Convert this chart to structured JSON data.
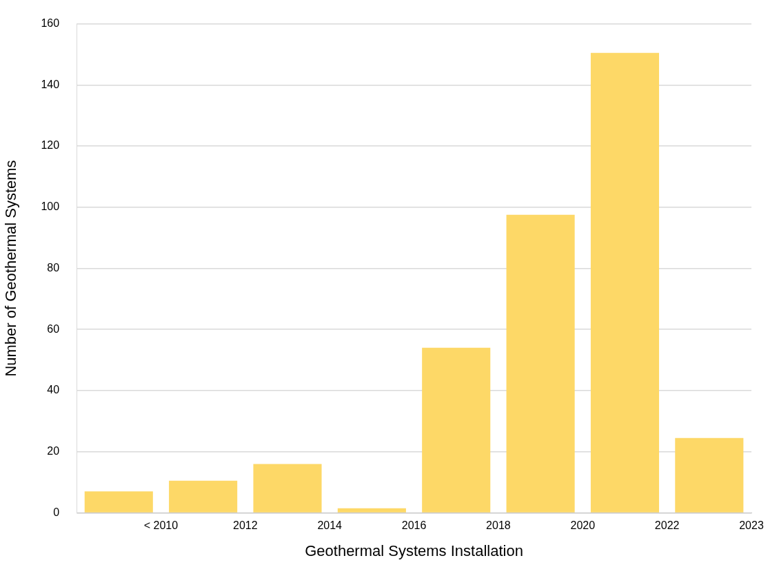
{
  "chart_data": {
    "type": "bar",
    "xlabel": "Geothermal Systems Installation",
    "ylabel": "Number of Geothermal Systems",
    "categories": [
      "< 2010",
      "2012",
      "2014",
      "2016",
      "2018",
      "2020",
      "2022",
      "2023"
    ],
    "values": [
      7,
      10.5,
      16,
      1.5,
      54,
      97.5,
      150.5,
      24.5
    ],
    "color": "#fdd867",
    "ylim": [
      0,
      160
    ],
    "yticks": [
      0,
      20,
      40,
      60,
      80,
      100,
      120,
      140,
      160
    ],
    "grid": "y",
    "legend": false
  }
}
